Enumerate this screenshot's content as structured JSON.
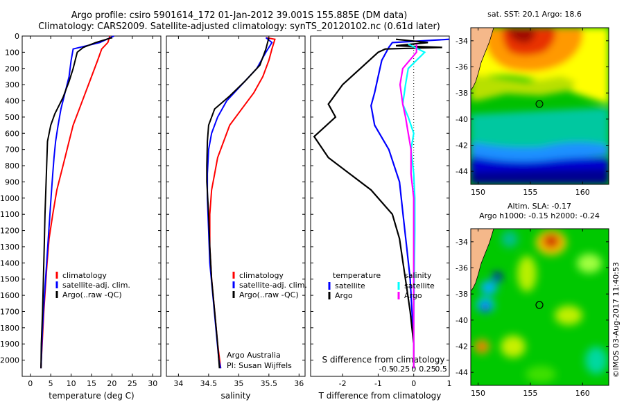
{
  "title_line1": "Argo profile: csiro 5901614_172 01-Jan-2012 39.001S 155.885E (DM data)",
  "title_line2": "Climatology: CARS2009. Satellite-adjusted climatology: synTS_20120102.nc (0.61d later)",
  "credit_line1": "Argo Australia",
  "credit_line2": "PI: Susan Wijffels",
  "timestamp": "©IMOS 03-Aug-2017 11:40:53",
  "colors": {
    "climatology": "#ff0000",
    "satellite": "#0000ff",
    "argo": "#000000",
    "sal_satellite": "#00ffff",
    "sal_argo": "#ff00ff",
    "land": "#f5b88a"
  },
  "chart_data": [
    {
      "type": "line",
      "name": "temperature",
      "xlabel": "temperature (deg C)",
      "ylabel": "",
      "xlim": [
        -2,
        32
      ],
      "ylim": [
        0,
        2100
      ],
      "xticks": [
        0,
        5,
        10,
        15,
        20,
        25,
        30
      ],
      "yticks": [
        0,
        100,
        200,
        300,
        400,
        500,
        600,
        700,
        800,
        900,
        1000,
        1100,
        1200,
        1300,
        1400,
        1500,
        1600,
        1700,
        1800,
        1900,
        2000
      ],
      "y_reversed": true,
      "legend": [
        "climatology",
        "satellite-adj. clim.",
        "Argo(..raw -QC)"
      ],
      "series": [
        {
          "name": "climatology",
          "color": "#ff0000",
          "points": [
            [
              19.5,
              0
            ],
            [
              19.0,
              40
            ],
            [
              17.5,
              80
            ],
            [
              16.5,
              150
            ],
            [
              15.0,
              250
            ],
            [
              13.5,
              350
            ],
            [
              12.0,
              450
            ],
            [
              10.5,
              550
            ],
            [
              9.5,
              650
            ],
            [
              8.5,
              750
            ],
            [
              7.5,
              850
            ],
            [
              6.5,
              950
            ],
            [
              5.5,
              1100
            ],
            [
              4.6,
              1250
            ],
            [
              4.1,
              1400
            ],
            [
              3.7,
              1550
            ],
            [
              3.3,
              1700
            ],
            [
              3.0,
              1850
            ],
            [
              2.7,
              2000
            ],
            [
              2.6,
              2050
            ]
          ]
        },
        {
          "name": "satellite-adj. clim.",
          "color": "#0000ff",
          "points": [
            [
              20.5,
              0
            ],
            [
              17.0,
              40
            ],
            [
              10.5,
              80
            ],
            [
              10.0,
              150
            ],
            [
              9.5,
              250
            ],
            [
              8.5,
              350
            ],
            [
              7.5,
              450
            ],
            [
              6.8,
              550
            ],
            [
              6.2,
              650
            ],
            [
              5.8,
              750
            ],
            [
              5.5,
              850
            ],
            [
              5.2,
              950
            ],
            [
              4.8,
              1100
            ],
            [
              4.4,
              1250
            ],
            [
              4.0,
              1400
            ],
            [
              3.6,
              1550
            ],
            [
              3.2,
              1700
            ],
            [
              2.9,
              1850
            ],
            [
              2.7,
              2000
            ],
            [
              2.6,
              2050
            ]
          ]
        },
        {
          "name": "Argo(..raw -QC)",
          "color": "#000000",
          "points": [
            [
              20.0,
              10
            ],
            [
              16.0,
              40
            ],
            [
              13.0,
              70
            ],
            [
              11.5,
              100
            ],
            [
              10.5,
              200
            ],
            [
              9.5,
              280
            ],
            [
              8.0,
              380
            ],
            [
              6.0,
              480
            ],
            [
              5.0,
              550
            ],
            [
              4.2,
              650
            ],
            [
              4.0,
              800
            ],
            [
              3.8,
              950
            ],
            [
              3.6,
              1100
            ],
            [
              3.4,
              1300
            ],
            [
              3.2,
              1500
            ],
            [
              3.0,
              1700
            ],
            [
              2.7,
              1900
            ],
            [
              2.6,
              2050
            ]
          ]
        }
      ]
    },
    {
      "type": "line",
      "name": "salinity",
      "xlabel": "salinity",
      "ylabel": "",
      "xlim": [
        33.8,
        36.1
      ],
      "ylim": [
        0,
        2100
      ],
      "xticks": [
        34,
        34.5,
        35,
        35.5,
        36
      ],
      "y_reversed": true,
      "legend": [
        "climatology",
        "satellite-adj. clim.",
        "Argo(..raw -QC)"
      ],
      "series": [
        {
          "name": "climatology",
          "color": "#ff0000",
          "points": [
            [
              35.45,
              10
            ],
            [
              35.6,
              20
            ],
            [
              35.55,
              80
            ],
            [
              35.5,
              150
            ],
            [
              35.4,
              250
            ],
            [
              35.25,
              350
            ],
            [
              35.05,
              450
            ],
            [
              34.85,
              550
            ],
            [
              34.75,
              650
            ],
            [
              34.65,
              750
            ],
            [
              34.6,
              850
            ],
            [
              34.55,
              950
            ],
            [
              34.52,
              1100
            ],
            [
              34.52,
              1300
            ],
            [
              34.55,
              1500
            ],
            [
              34.6,
              1700
            ],
            [
              34.65,
              1900
            ],
            [
              34.7,
              2050
            ]
          ]
        },
        {
          "name": "satellite-adj. clim.",
          "color": "#0000ff",
          "points": [
            [
              35.45,
              10
            ],
            [
              35.55,
              40
            ],
            [
              35.45,
              100
            ],
            [
              35.3,
              200
            ],
            [
              35.05,
              300
            ],
            [
              34.8,
              400
            ],
            [
              34.65,
              500
            ],
            [
              34.55,
              600
            ],
            [
              34.5,
              700
            ],
            [
              34.48,
              850
            ],
            [
              34.48,
              1000
            ],
            [
              34.5,
              1200
            ],
            [
              34.52,
              1400
            ],
            [
              34.57,
              1600
            ],
            [
              34.62,
              1800
            ],
            [
              34.67,
              2000
            ],
            [
              34.7,
              2050
            ]
          ]
        },
        {
          "name": "Argo(..raw -QC)",
          "color": "#000000",
          "points": [
            [
              35.5,
              10
            ],
            [
              35.45,
              80
            ],
            [
              35.35,
              180
            ],
            [
              35.1,
              280
            ],
            [
              34.85,
              370
            ],
            [
              34.6,
              450
            ],
            [
              34.5,
              550
            ],
            [
              34.48,
              650
            ],
            [
              34.47,
              800
            ],
            [
              34.47,
              900
            ],
            [
              34.5,
              1100
            ],
            [
              34.52,
              1300
            ],
            [
              34.55,
              1500
            ],
            [
              34.6,
              1700
            ],
            [
              34.65,
              1900
            ],
            [
              34.68,
              2050
            ]
          ]
        }
      ]
    },
    {
      "type": "line",
      "name": "differences",
      "xlabel": "T difference from climatology",
      "x2label": "S difference from climatology",
      "xlim": [
        -2.9,
        1.0
      ],
      "ylim": [
        0,
        2100
      ],
      "xticks": [
        -2,
        -1,
        0,
        1
      ],
      "xticklabels": [
        "-2",
        "-1",
        "0",
        "1"
      ],
      "x2ticks": [
        -0.5,
        -0.25,
        0,
        0.25,
        0.5
      ],
      "x2ticklabels": [
        "-0.5",
        "-0.25",
        "0",
        "0.25",
        "0.5"
      ],
      "y_reversed": true,
      "legend_headers": [
        "temperature",
        "salinity"
      ],
      "legend": [
        "satellite",
        "Argo",
        "satellite",
        "Argo"
      ],
      "series": [
        {
          "name": "T satellite",
          "color": "#0000ff",
          "points": [
            [
              1.0,
              20
            ],
            [
              -0.6,
              40
            ],
            [
              -0.7,
              70
            ],
            [
              -0.9,
              150
            ],
            [
              -1.0,
              250
            ],
            [
              -1.1,
              350
            ],
            [
              -1.2,
              430
            ],
            [
              -1.1,
              550
            ],
            [
              -0.7,
              700
            ],
            [
              -0.4,
              900
            ],
            [
              -0.3,
              1100
            ],
            [
              -0.2,
              1300
            ],
            [
              -0.1,
              1500
            ],
            [
              -0.05,
              1700
            ],
            [
              0.0,
              1900
            ],
            [
              0.0,
              2050
            ]
          ]
        },
        {
          "name": "T Argo",
          "color": "#000000",
          "points": [
            [
              -0.5,
              20
            ],
            [
              0.4,
              40
            ],
            [
              -0.5,
              60
            ],
            [
              0.8,
              70
            ],
            [
              -0.8,
              80
            ],
            [
              -1.0,
              100
            ],
            [
              -1.5,
              200
            ],
            [
              -2.0,
              300
            ],
            [
              -2.4,
              420
            ],
            [
              -2.2,
              500
            ],
            [
              -2.8,
              620
            ],
            [
              -2.4,
              750
            ],
            [
              -1.8,
              850
            ],
            [
              -1.2,
              950
            ],
            [
              -0.6,
              1100
            ],
            [
              -0.4,
              1250
            ],
            [
              -0.3,
              1400
            ],
            [
              -0.2,
              1550
            ],
            [
              -0.1,
              1700
            ],
            [
              0.0,
              1900
            ],
            [
              0.0,
              2050
            ]
          ]
        },
        {
          "name": "S satellite",
          "color": "#00ffff",
          "points": [
            [
              -0.1,
              50
            ],
            [
              0.2,
              100
            ],
            [
              -0.1,
              200
            ],
            [
              -0.15,
              300
            ],
            [
              -0.2,
              420
            ],
            [
              -0.1,
              500
            ],
            [
              0.0,
              600
            ],
            [
              -0.05,
              700
            ],
            [
              0.0,
              850
            ],
            [
              0.02,
              1000
            ],
            [
              0.02,
              1200
            ],
            [
              0.01,
              1500
            ],
            [
              0.0,
              1800
            ],
            [
              0.0,
              2050
            ]
          ]
        },
        {
          "name": "S Argo",
          "color": "#ff00ff",
          "points": [
            [
              0.05,
              50
            ],
            [
              0.05,
              100
            ],
            [
              -0.2,
              200
            ],
            [
              -0.25,
              300
            ],
            [
              -0.2,
              420
            ],
            [
              -0.15,
              500
            ],
            [
              -0.1,
              600
            ],
            [
              -0.05,
              700
            ],
            [
              -0.05,
              850
            ],
            [
              0.0,
              1000
            ],
            [
              0.0,
              1200
            ],
            [
              0.0,
              1500
            ],
            [
              0.0,
              1800
            ],
            [
              0.0,
              2050
            ]
          ]
        }
      ]
    },
    {
      "type": "heatmap",
      "name": "sst-map",
      "title": "sat. SST: 20.1  Argo: 18.6",
      "xlim": [
        149.3,
        162.5
      ],
      "ylim": [
        -45.0,
        -33.0
      ],
      "xticks": [
        150,
        155,
        160
      ],
      "yticks": [
        -34,
        -36,
        -38,
        -40,
        -42,
        -44
      ],
      "marker": {
        "lon": 155.885,
        "lat": -39.001
      }
    },
    {
      "type": "heatmap",
      "name": "sla-map",
      "title": "Altim. SLA: -0.17",
      "subtitle": "Argo h1000: -0.15 h2000: -0.24",
      "xlim": [
        149.3,
        162.5
      ],
      "ylim": [
        -45.0,
        -33.0
      ],
      "xticks": [
        150,
        155,
        160
      ],
      "yticks": [
        -34,
        -36,
        -38,
        -40,
        -42,
        -44
      ],
      "marker": {
        "lon": 155.885,
        "lat": -39.001
      }
    }
  ]
}
